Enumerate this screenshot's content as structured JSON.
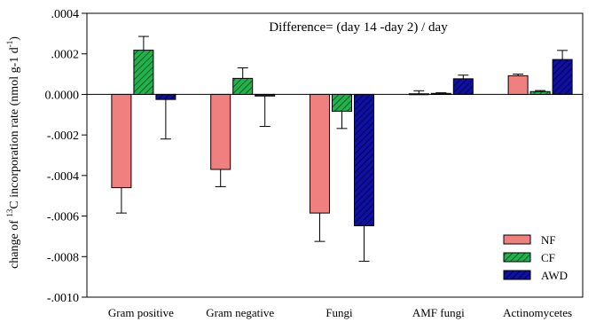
{
  "chart_data": {
    "type": "bar",
    "categories": [
      "Gram positive",
      "Gram negative",
      "Fungi",
      "AMF fungi",
      "Actinomycetes"
    ],
    "series": [
      {
        "name": "NF",
        "color": "#f08080",
        "pattern": "solid",
        "values": [
          -0.00046,
          -0.00037,
          -0.000585,
          3e-06,
          9.2e-05
        ],
        "errors": [
          0.000125,
          8.5e-05,
          0.00014,
          1.5e-05,
          8e-06
        ]
      },
      {
        "name": "CF",
        "color": "#22b14c",
        "pattern": "hatch",
        "values": [
          0.000218,
          7.9e-05,
          -8.3e-05,
          5e-06,
          1.4e-05
        ],
        "errors": [
          6.8e-05,
          5.2e-05,
          8.5e-05,
          3e-06,
          5e-06
        ]
      },
      {
        "name": "AWD",
        "color": "#1010a0",
        "pattern": "hatch",
        "values": [
          -2.5e-05,
          -8e-06,
          -0.000648,
          7.7e-05,
          0.000172
        ],
        "errors": [
          0.000195,
          0.00015,
          0.000175,
          1.8e-05,
          4.5e-05
        ]
      }
    ],
    "ylim": [
      -0.001,
      0.0004
    ],
    "yticks": [
      -0.001,
      -0.0008,
      -0.0006,
      -0.0004,
      -0.0002,
      0,
      0.0002,
      0.0004
    ],
    "ytick_labels": [
      "-.0010",
      "-.0008",
      "-.0006",
      "-.0004",
      "-.0002",
      "0.0000",
      ".0002",
      ".0004"
    ],
    "ylabel_prefix": "change of ",
    "ylabel_sup": "13",
    "ylabel_mid": "C incorporation rate (nmol g-1 d",
    "ylabel_sup2": "-1",
    "ylabel_suffix": ")",
    "annotation": "Difference= (day 14 -day 2) / day",
    "legend_position": "bottom-right",
    "grid": false
  }
}
